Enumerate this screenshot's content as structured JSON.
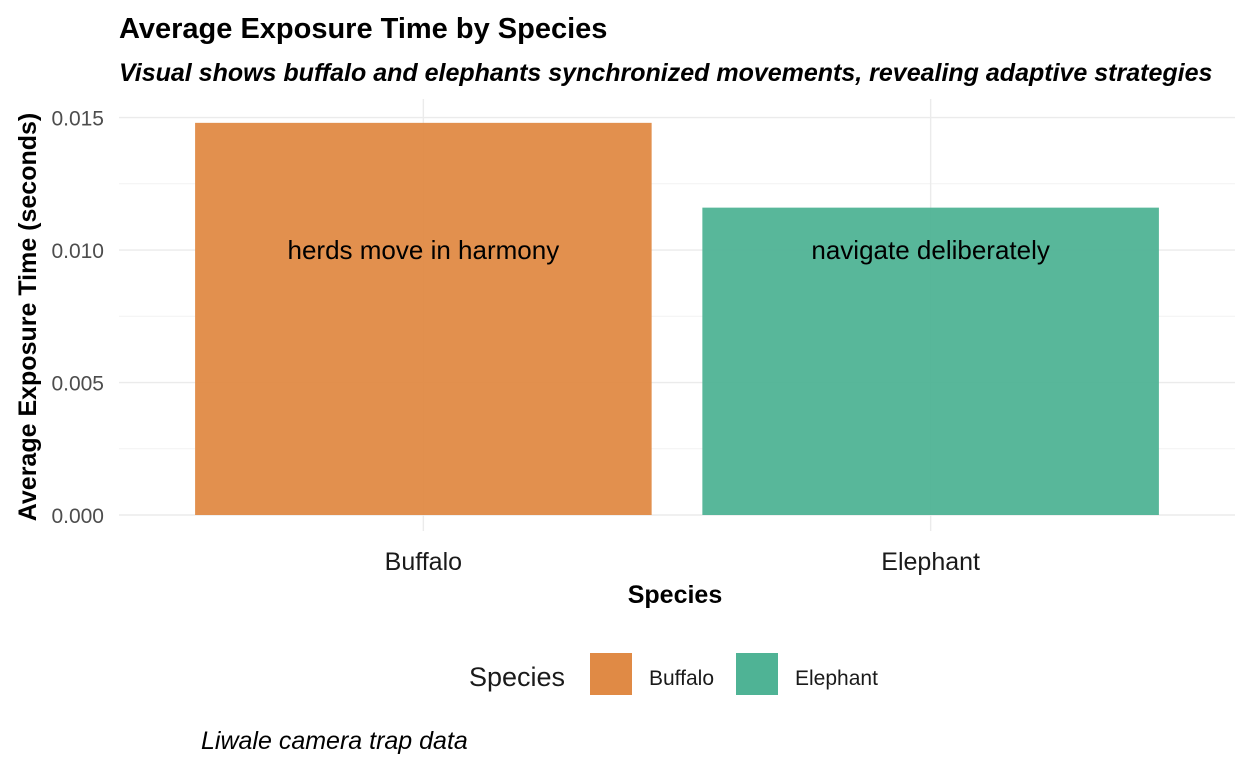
{
  "chart_data": {
    "type": "bar",
    "title": "Average Exposure Time by Species",
    "subtitle": "Visual shows buffalo and elephants synchronized movements, revealing adaptive strategies",
    "xlabel": "Species",
    "ylabel": "Average Exposure Time (seconds)",
    "categories": [
      "Buffalo",
      "Elephant"
    ],
    "values": [
      0.0148,
      0.0116
    ],
    "colors": [
      "#e08a45",
      "#4fb395"
    ],
    "annotations": [
      "herds move in harmony",
      "navigate deliberately"
    ],
    "annotation_y": 0.01,
    "ylim": [
      0,
      0.0157
    ],
    "yticks": [
      0,
      0.005,
      0.01,
      0.015
    ],
    "ytick_labels": [
      "0.000",
      "0.005",
      "0.010",
      "0.015"
    ],
    "grid": true,
    "legend": {
      "title": "Species",
      "position": "bottom",
      "entries": [
        "Buffalo",
        "Elephant"
      ]
    },
    "caption": "Liwale camera trap data"
  }
}
